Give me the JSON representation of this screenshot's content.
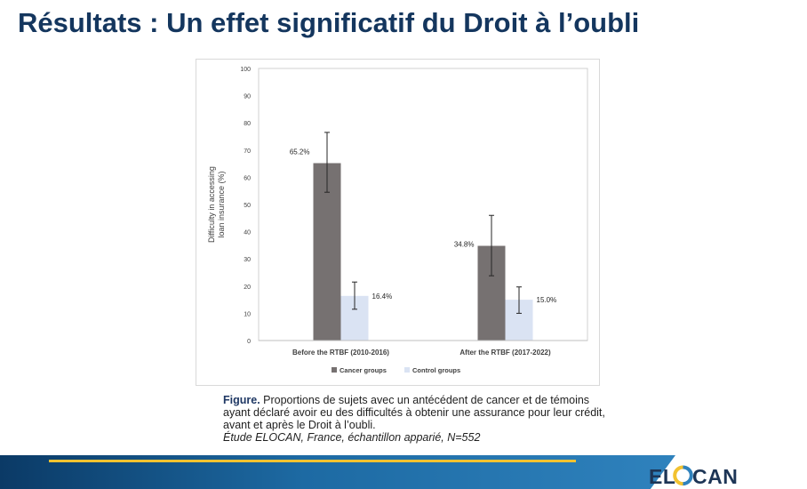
{
  "slide": {
    "title": "Résultats : Un effet significatif du Droit à l’oubli"
  },
  "chart_data": {
    "type": "bar",
    "categories": [
      "Before the RTBF (2010-2016)",
      "After the RTBF (2017-2022)"
    ],
    "series": [
      {
        "name": "Cancer groups",
        "values": [
          65.2,
          34.8
        ],
        "error_low": [
          54.5,
          23.8
        ],
        "error_high": [
          76.5,
          46.0
        ],
        "labels": [
          "65.2%",
          "34.8%"
        ],
        "color": "#767171"
      },
      {
        "name": "Control groups",
        "values": [
          16.4,
          15.0
        ],
        "error_low": [
          11.5,
          10.0
        ],
        "error_high": [
          21.5,
          19.7
        ],
        "labels": [
          "16.4%",
          "15.0%"
        ],
        "color": "#dae3f3"
      }
    ],
    "ylabel_lines": [
      "Difficulty in accessing",
      "loan insurance (%)"
    ],
    "ylim": [
      0,
      100
    ],
    "yticks": [
      "0",
      "10",
      "20",
      "30",
      "40",
      "50",
      "60",
      "70",
      "80",
      "90",
      "100"
    ],
    "grid": false,
    "legend_position": "bottom"
  },
  "caption": {
    "label": "Figure.",
    "text": "Proportions de sujets avec un antécédent de cancer et de témoins ayant déclaré avoir eu des difficultés à obtenir une assurance pour leur crédit, avant et après le Droit à l’oubli.",
    "study": "Étude ELOCAN, France, échantillon apparié, N=552"
  },
  "logo": {
    "text": "ELOCAN",
    "colors": {
      "text": "#1d3556",
      "o_blue": "#2f82bd",
      "o_yellow": "#f2c230"
    }
  },
  "colors": {
    "title": "#14365e",
    "band_dark": "#0b3a66",
    "band_light": "#2f82bd",
    "accent_line": "#f2c230"
  }
}
